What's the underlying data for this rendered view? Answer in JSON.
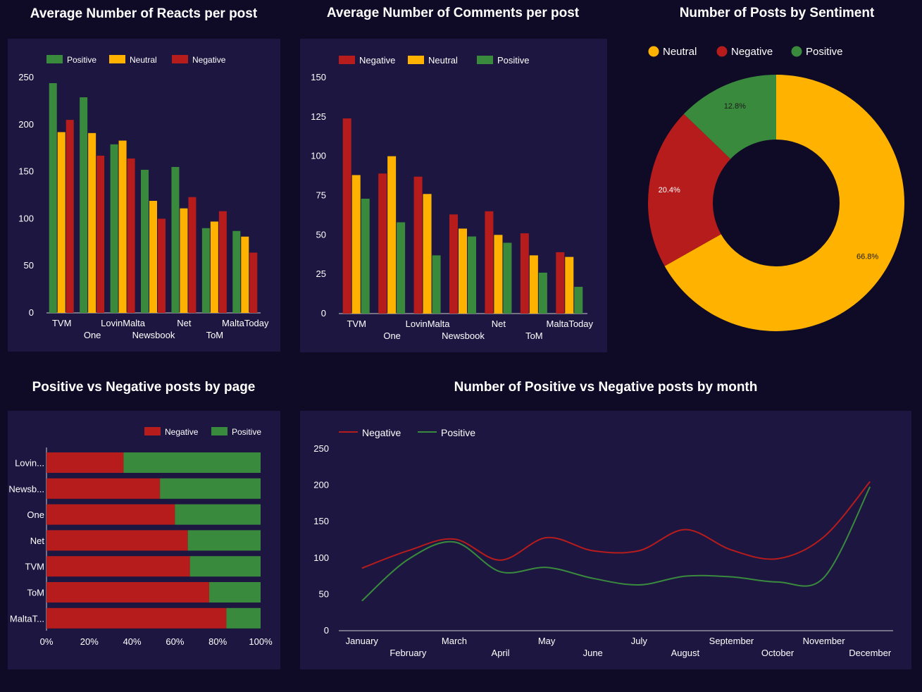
{
  "titles": {
    "reacts": "Average Number of Reacts per post",
    "comments": "Average Number of Comments per post",
    "sentiment": "Number of Posts by Sentiment",
    "pvn_page": "Positive vs Negative posts by page",
    "pvn_month": "Number of Positive vs Negative posts by month"
  },
  "colors": {
    "positive": "#3a8a3e",
    "neutral": "#ffb300",
    "negative": "#b71c1c",
    "panel": "#1c1640",
    "background": "#0f0b26"
  },
  "chart_data": [
    {
      "id": "reacts",
      "type": "bar",
      "title": "Average Number of Reacts per post",
      "categories": [
        "TVM",
        "One",
        "LovinMalta",
        "Newsbook",
        "Net",
        "ToM",
        "MaltaToday"
      ],
      "series": [
        {
          "name": "Positive",
          "values": [
            244,
            229,
            179,
            152,
            155,
            90,
            87
          ]
        },
        {
          "name": "Neutral",
          "values": [
            192,
            191,
            183,
            119,
            111,
            97,
            81
          ]
        },
        {
          "name": "Negative",
          "values": [
            205,
            167,
            164,
            100,
            123,
            108,
            64
          ]
        }
      ],
      "yticks": [
        "0",
        "50",
        "100",
        "150",
        "200",
        "250"
      ],
      "ylim": [
        0,
        250
      ],
      "legend": "top-left"
    },
    {
      "id": "comments",
      "type": "bar",
      "title": "Average Number of Comments per post",
      "categories": [
        "TVM",
        "One",
        "LovinMalta",
        "Newsbook",
        "Net",
        "ToM",
        "MaltaToday"
      ],
      "series": [
        {
          "name": "Negative",
          "values": [
            124,
            89,
            87,
            63,
            65,
            51,
            39
          ]
        },
        {
          "name": "Neutral",
          "values": [
            88,
            100,
            76,
            54,
            50,
            37,
            36
          ]
        },
        {
          "name": "Positive",
          "values": [
            73,
            58,
            37,
            49,
            45,
            26,
            17
          ]
        }
      ],
      "yticks": [
        "0",
        "25",
        "50",
        "75",
        "100",
        "125",
        "150"
      ],
      "ylim": [
        0,
        150
      ],
      "legend": "top-left"
    },
    {
      "id": "sentiment",
      "type": "pie",
      "title": "Number of Posts by Sentiment",
      "slices": [
        {
          "name": "Neutral",
          "value": 66.8,
          "label": "66.8%"
        },
        {
          "name": "Negative",
          "value": 20.4,
          "label": "20.4%"
        },
        {
          "name": "Positive",
          "value": 12.8,
          "label": "12.8%"
        }
      ],
      "donut": true,
      "legend": "top"
    },
    {
      "id": "pvn_page",
      "type": "bar",
      "orientation": "horizontal",
      "stacked": "percent",
      "title": "Positive vs Negative posts by page",
      "categories": [
        "Lovin...",
        "Newsb...",
        "One",
        "Net",
        "TVM",
        "ToM",
        "MaltaT..."
      ],
      "series": [
        {
          "name": "Negative",
          "values": [
            36,
            53,
            60,
            66,
            67,
            76,
            84
          ]
        },
        {
          "name": "Positive",
          "values": [
            64,
            47,
            40,
            34,
            33,
            24,
            16
          ]
        }
      ],
      "xticks": [
        "0%",
        "20%",
        "40%",
        "60%",
        "80%",
        "100%"
      ],
      "legend": "top-right"
    },
    {
      "id": "pvn_month",
      "type": "line",
      "title": "Number of Positive vs Negative posts by month",
      "categories": [
        "January",
        "February",
        "March",
        "April",
        "May",
        "June",
        "July",
        "August",
        "September",
        "October",
        "November",
        "December"
      ],
      "series": [
        {
          "name": "Negative",
          "values": [
            86,
            110,
            126,
            97,
            128,
            110,
            110,
            139,
            111,
            99,
            129,
            205
          ]
        },
        {
          "name": "Positive",
          "values": [
            41,
            98,
            122,
            81,
            87,
            72,
            63,
            75,
            74,
            67,
            73,
            198
          ]
        }
      ],
      "yticks": [
        "0",
        "50",
        "100",
        "150",
        "200",
        "250"
      ],
      "ylim": [
        0,
        250
      ],
      "legend": "top-left"
    }
  ]
}
